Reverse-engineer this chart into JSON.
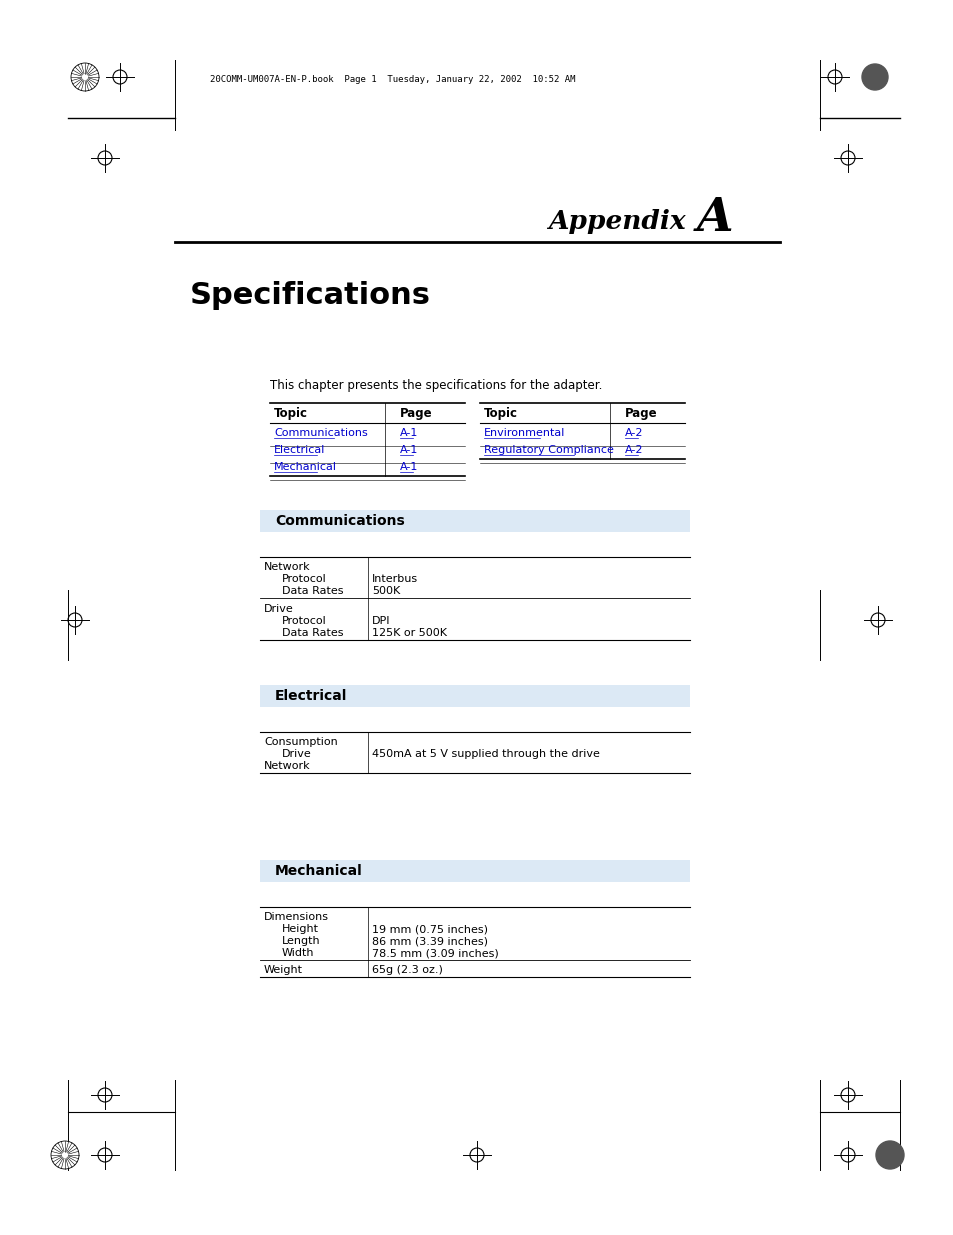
{
  "header_text": "20COMM-UM007A-EN-P.book  Page 1  Tuesday, January 22, 2002  10:52 AM",
  "appendix_label": "Appendix ",
  "appendix_letter": "A",
  "page_title": "Specifications",
  "intro_text": "This chapter presents the specifications for the adapter.",
  "table1_headers": [
    "Topic",
    "Page"
  ],
  "table1_rows": [
    [
      "Communications",
      "A-1"
    ],
    [
      "Electrical",
      "A-1"
    ],
    [
      "Mechanical",
      "A-1"
    ]
  ],
  "table2_headers": [
    "Topic",
    "Page"
  ],
  "table2_rows": [
    [
      "Environmental",
      "A-2"
    ],
    [
      "Regulatory Compliance",
      "A-2"
    ]
  ],
  "link_color": "#0000CC",
  "section_bg_color": "#dce9f5",
  "comm_section_title": "Communications",
  "elec_section_title": "Electrical",
  "mech_section_title": "Mechanical",
  "background_color": "#ffffff",
  "text_color": "#000000"
}
